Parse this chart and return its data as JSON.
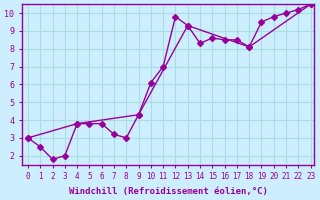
{
  "title": "",
  "xlabel": "Windchill (Refroidissement éolien,°C)",
  "ylabel": "",
  "bg_color": "#cceeff",
  "line_color": "#990099",
  "grid_color": "#aadddd",
  "axis_color": "#990099",
  "tick_label_color": "#990099",
  "xlabel_color": "#990099",
  "xlim": [
    0,
    23
  ],
  "ylim": [
    1.5,
    10.5
  ],
  "yticks": [
    2,
    3,
    4,
    5,
    6,
    7,
    8,
    9,
    10
  ],
  "xticks": [
    0,
    1,
    2,
    3,
    4,
    5,
    6,
    7,
    8,
    9,
    10,
    11,
    12,
    13,
    14,
    15,
    16,
    17,
    18,
    19,
    20,
    21,
    22,
    23
  ],
  "line1_x": [
    0,
    1,
    2,
    3,
    4,
    5,
    6,
    7,
    8,
    9,
    10,
    11,
    12,
    13,
    14,
    15,
    16,
    17,
    18,
    19,
    20,
    21,
    22,
    23
  ],
  "line1_y": [
    3.0,
    2.5,
    1.8,
    2.0,
    3.8,
    3.8,
    3.8,
    3.2,
    3.0,
    4.3,
    6.1,
    7.0,
    9.8,
    9.3,
    8.3,
    8.6,
    8.5,
    8.5,
    8.1,
    9.5,
    9.8,
    10.0,
    10.2,
    10.5
  ],
  "line2_x": [
    0,
    4,
    9,
    13,
    18,
    23
  ],
  "line2_y": [
    3.0,
    3.8,
    4.3,
    9.3,
    8.1,
    10.5
  ]
}
